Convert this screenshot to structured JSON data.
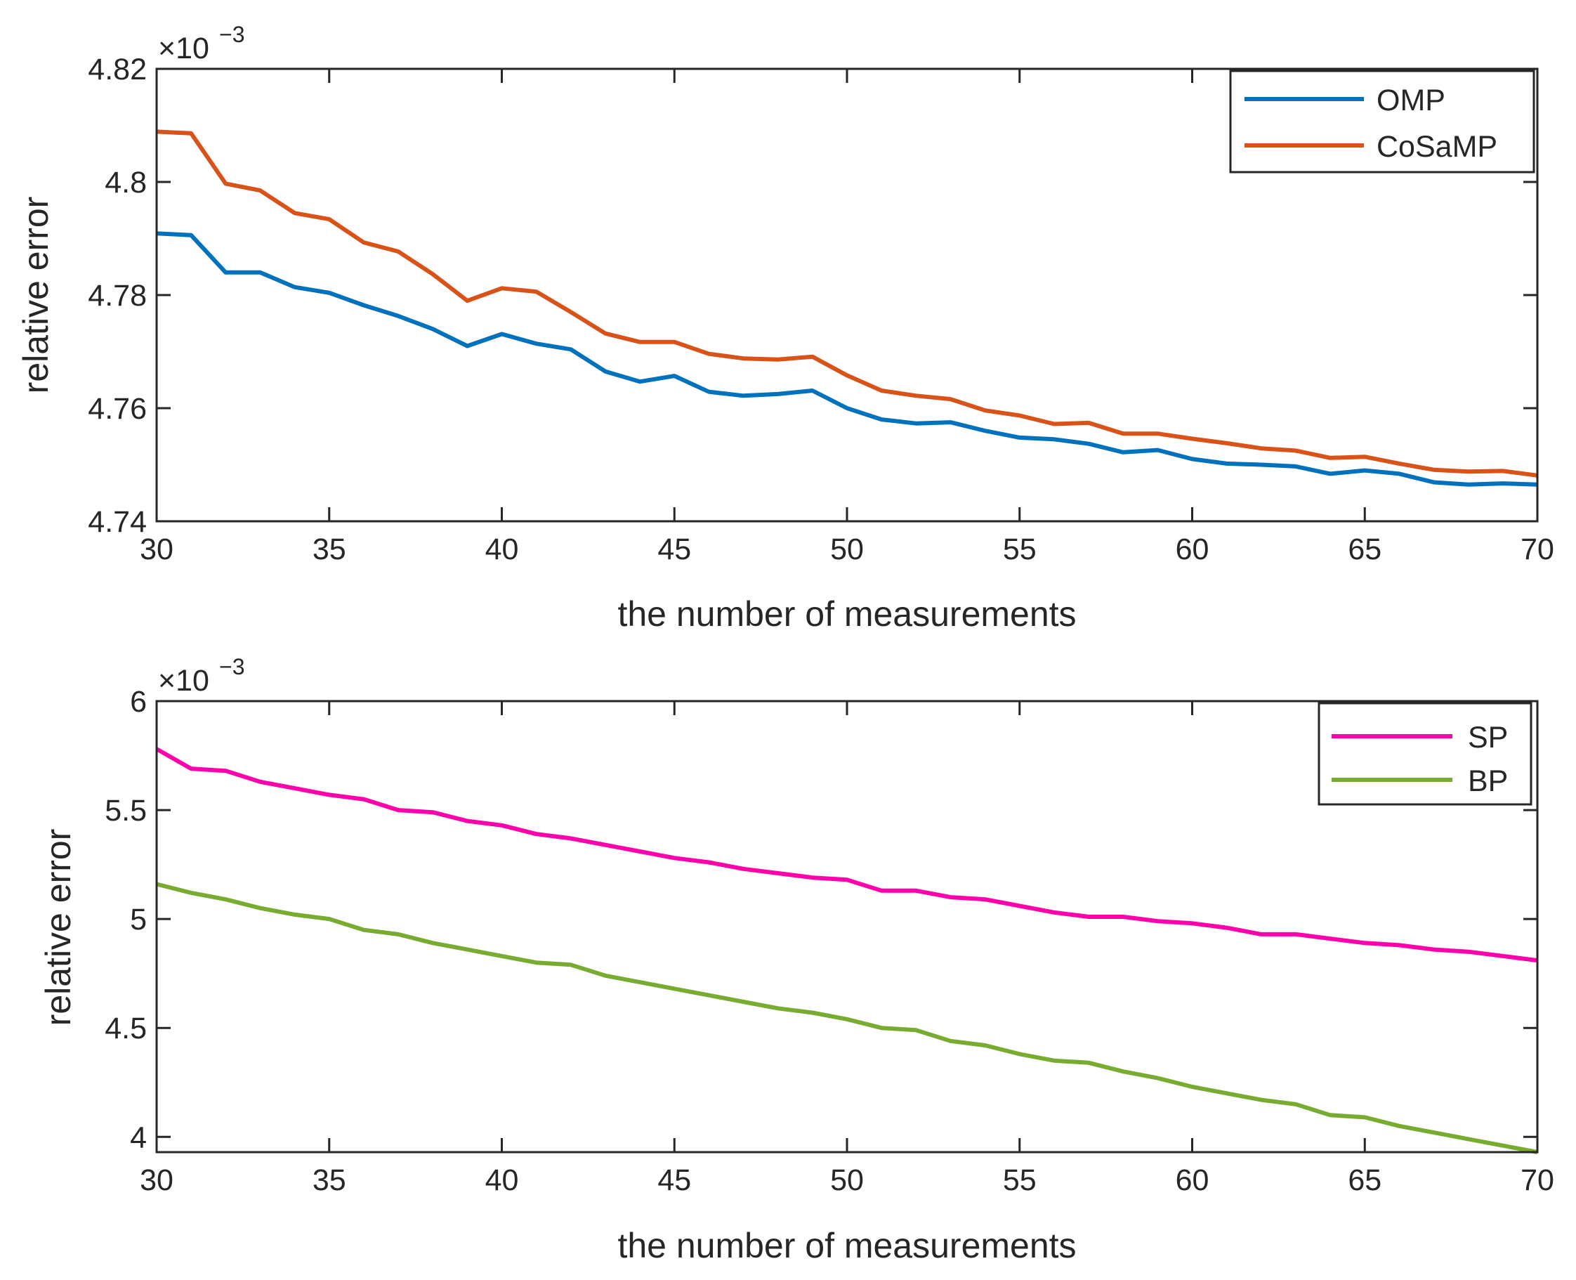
{
  "chart_data": [
    {
      "type": "line",
      "title": "",
      "xlabel": "the number of measurements",
      "ylabel": "relative error",
      "exponent_base": "×10",
      "exponent_power": "−3",
      "xlim": [
        30,
        70
      ],
      "ylim": [
        4.74,
        4.82
      ],
      "xticks": [
        30,
        35,
        40,
        45,
        50,
        55,
        60,
        65,
        70
      ],
      "xtick_labels": [
        "30",
        "35",
        "40",
        "45",
        "50",
        "55",
        "60",
        "65",
        "70"
      ],
      "yticks": [
        4.74,
        4.76,
        4.78,
        4.8,
        4.82
      ],
      "ytick_labels": [
        "4.74",
        "4.76",
        "4.78",
        "4.8",
        "4.82"
      ],
      "grid": false,
      "legend": "top-right",
      "x": [
        30,
        31,
        32,
        33,
        34,
        35,
        36,
        37,
        38,
        39,
        40,
        41,
        42,
        43,
        44,
        45,
        46,
        47,
        48,
        49,
        50,
        51,
        52,
        53,
        54,
        55,
        56,
        57,
        58,
        59,
        60,
        61,
        62,
        63,
        64,
        65,
        66,
        67,
        68,
        69,
        70
      ],
      "series": [
        {
          "name": "OMP",
          "color": "#0072BD",
          "values": [
            4.7909,
            4.7906,
            4.784,
            4.784,
            4.7814,
            4.7804,
            4.7782,
            4.7763,
            4.774,
            4.771,
            4.7731,
            4.7714,
            4.7704,
            4.7665,
            4.7647,
            4.7657,
            4.7629,
            4.7622,
            4.7625,
            4.7631,
            4.76,
            4.758,
            4.7573,
            4.7575,
            4.756,
            4.7548,
            4.7545,
            4.7537,
            4.7522,
            4.7526,
            4.751,
            4.7502,
            4.75,
            4.7497,
            4.7484,
            4.749,
            4.7484,
            4.7469,
            4.7465,
            4.7467,
            4.7465
          ]
        },
        {
          "name": "CoSaMP",
          "color": "#D95319",
          "values": [
            4.8089,
            4.8086,
            4.7997,
            4.7985,
            4.7945,
            4.7934,
            4.7893,
            4.7877,
            4.7837,
            4.779,
            4.7812,
            4.7806,
            4.777,
            4.7732,
            4.7717,
            4.7717,
            4.7696,
            4.7688,
            4.7686,
            4.7691,
            4.7658,
            4.7631,
            4.7622,
            4.7616,
            4.7596,
            4.7587,
            4.7572,
            4.7574,
            4.7555,
            4.7555,
            4.7546,
            4.7538,
            4.7529,
            4.7525,
            4.7512,
            4.7514,
            4.7502,
            4.7491,
            4.7488,
            4.7489,
            4.7481
          ]
        }
      ]
    },
    {
      "type": "line",
      "title": "",
      "xlabel": "the number of measurements",
      "ylabel": "relative error",
      "exponent_base": "×10",
      "exponent_power": "−3",
      "xlim": [
        30,
        70
      ],
      "ylim": [
        3.93,
        6
      ],
      "xticks": [
        30,
        35,
        40,
        45,
        50,
        55,
        60,
        65,
        70
      ],
      "xtick_labels": [
        "30",
        "35",
        "40",
        "45",
        "50",
        "55",
        "60",
        "65",
        "70"
      ],
      "yticks": [
        4,
        4.5,
        5,
        5.5,
        6
      ],
      "ytick_labels": [
        "4",
        "4.5",
        "5",
        "5.5",
        "6"
      ],
      "grid": false,
      "legend": "top-right",
      "x": [
        30,
        31,
        32,
        33,
        34,
        35,
        36,
        37,
        38,
        39,
        40,
        41,
        42,
        43,
        44,
        45,
        46,
        47,
        48,
        49,
        50,
        51,
        52,
        53,
        54,
        55,
        56,
        57,
        58,
        59,
        60,
        61,
        62,
        63,
        64,
        65,
        66,
        67,
        68,
        69,
        70
      ],
      "series": [
        {
          "name": "SP",
          "color": "#FF00AA",
          "values": [
            5.78,
            5.69,
            5.68,
            5.63,
            5.6,
            5.57,
            5.55,
            5.5,
            5.49,
            5.45,
            5.43,
            5.39,
            5.37,
            5.34,
            5.31,
            5.28,
            5.26,
            5.23,
            5.21,
            5.19,
            5.18,
            5.13,
            5.13,
            5.1,
            5.09,
            5.06,
            5.03,
            5.01,
            5.01,
            4.99,
            4.98,
            4.96,
            4.93,
            4.93,
            4.91,
            4.89,
            4.88,
            4.86,
            4.85,
            4.83,
            4.81
          ]
        },
        {
          "name": "BP",
          "color": "#77AC30",
          "values": [
            5.16,
            5.12,
            5.09,
            5.05,
            5.02,
            5.0,
            4.95,
            4.93,
            4.89,
            4.86,
            4.83,
            4.8,
            4.79,
            4.74,
            4.71,
            4.68,
            4.65,
            4.62,
            4.59,
            4.57,
            4.54,
            4.5,
            4.49,
            4.44,
            4.42,
            4.38,
            4.35,
            4.34,
            4.3,
            4.27,
            4.23,
            4.2,
            4.17,
            4.15,
            4.1,
            4.09,
            4.05,
            4.02,
            3.99,
            3.96,
            3.93
          ]
        }
      ]
    }
  ]
}
